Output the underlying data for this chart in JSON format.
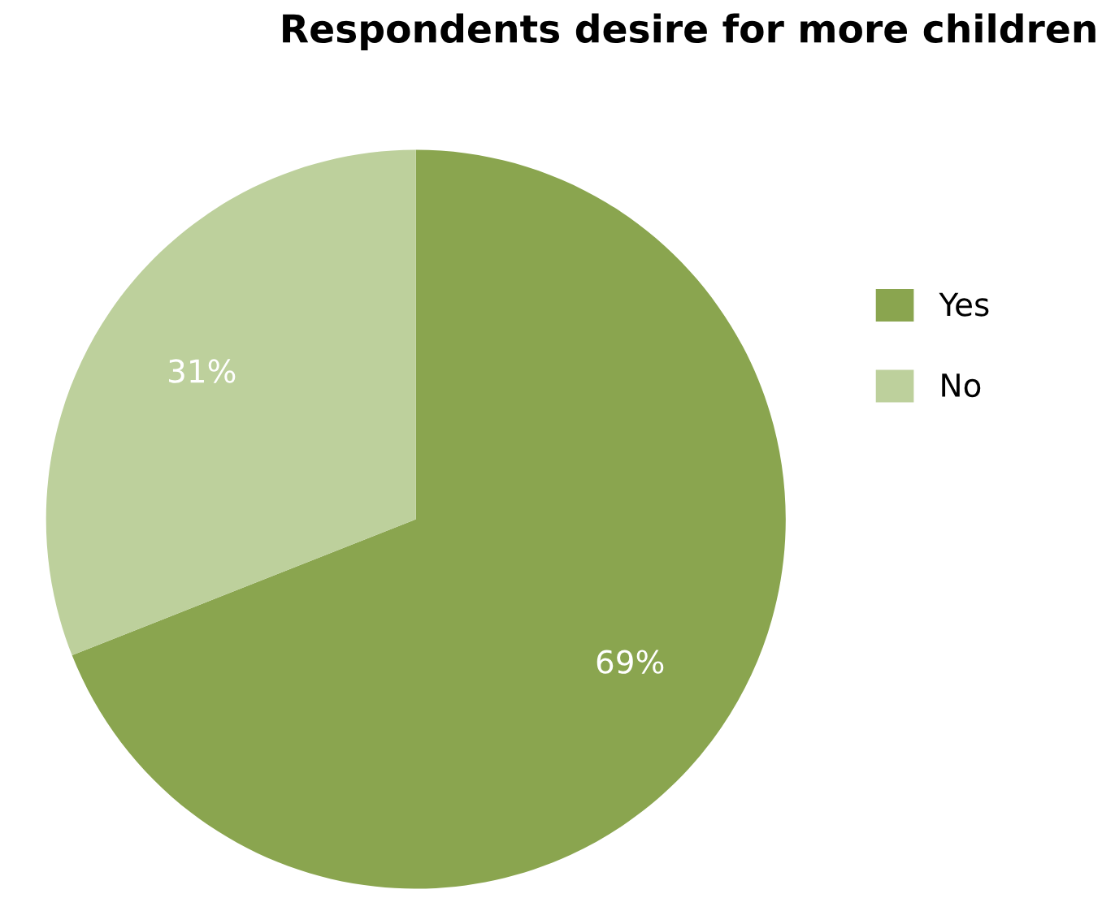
{
  "chart_data": {
    "type": "pie",
    "title": "Respondents desire for more children",
    "categories": [
      "Yes",
      "No"
    ],
    "values": [
      69,
      31
    ],
    "colors": [
      "#8aa54f",
      "#bdd09c"
    ],
    "value_labels": [
      "69%",
      "31%"
    ],
    "legend": "right"
  }
}
